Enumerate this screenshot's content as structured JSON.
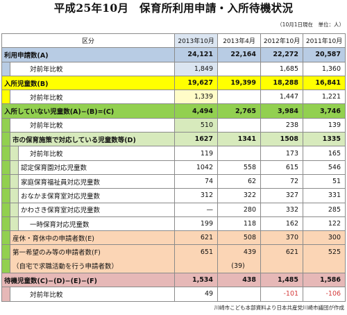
{
  "title": "平成25年10月　保育所利用申請・入所待機状況",
  "unit_note": "（10月1日現在　単位：人）",
  "header": {
    "label": "区分",
    "years": [
      "2013年10月",
      "2013年4月",
      "2012年10月",
      "2011年10月"
    ]
  },
  "rows": [
    {
      "label": "利用申請数(A)",
      "values": [
        "24,121",
        "22,164",
        "22,272",
        "20,587"
      ]
    },
    {
      "label": "対前年比較",
      "values": [
        "1,849",
        "",
        "1,685",
        "1,360"
      ]
    },
    {
      "label": "入所児童数(B)",
      "values": [
        "19,627",
        "19,399",
        "18,288",
        "16,841"
      ]
    },
    {
      "label": "対前年比較",
      "values": [
        "1,339",
        "",
        "1,447",
        "1,221"
      ]
    },
    {
      "label": "入所していない児童数(A)−(B)=(C)",
      "values": [
        "4,494",
        "2,765",
        "3,984",
        "3,746"
      ]
    },
    {
      "label": "対前年比較",
      "values": [
        "510",
        "",
        "238",
        "139"
      ]
    },
    {
      "label": "市の保育施策で対応している児童数等(D)",
      "values": [
        "1627",
        "1341",
        "1508",
        "1335"
      ]
    },
    {
      "label": "対前年比較",
      "values": [
        "119",
        "",
        "173",
        "165"
      ]
    },
    {
      "label": "認定保育園対応児童数",
      "values": [
        "1042",
        "558",
        "615",
        "546"
      ]
    },
    {
      "label": "家庭保育福祉員対応児童数",
      "values": [
        "74",
        "62",
        "72",
        "51"
      ]
    },
    {
      "label": "おなかま保育室対応児童数",
      "values": [
        "312",
        "322",
        "327",
        "331"
      ]
    },
    {
      "label": "かわさき保育室対応児童数",
      "values": [
        "—",
        "280",
        "332",
        "285"
      ]
    },
    {
      "label": "一時保育対応児童数",
      "values": [
        "199",
        "118",
        "162",
        "122"
      ]
    },
    {
      "label": "産休・育休中の申請者数(E)",
      "values": [
        "621",
        "508",
        "370",
        "300"
      ]
    },
    {
      "label": "第一希望のみ等の申請者数(F)",
      "values": [
        "651",
        "439",
        "621",
        "525"
      ]
    },
    {
      "label": "（自宅で求職活動を行う申請者数）",
      "values": [
        "",
        "(39)",
        "",
        ""
      ]
    },
    {
      "label": "待機児童数(C)−(D)−(E)−(F)",
      "values": [
        "1,534",
        "438",
        "1,485",
        "1,586"
      ]
    },
    {
      "label": "対前年比較",
      "values": [
        "49",
        "",
        "-101",
        "-106"
      ]
    }
  ],
  "footer": "川崎市こども本部資料より日本共産党川崎市議団が作成",
  "colors": {
    "blue": "#b8cce4",
    "blue_light": "#dbe5f1",
    "yellow": "#ffff00",
    "yellow_light": "#fffcc8",
    "green": "#92d050",
    "green_light": "#d7eabc",
    "salmon": "#fbd5b5",
    "pink": "#e6b8b7",
    "negative": "#d43a3a"
  }
}
